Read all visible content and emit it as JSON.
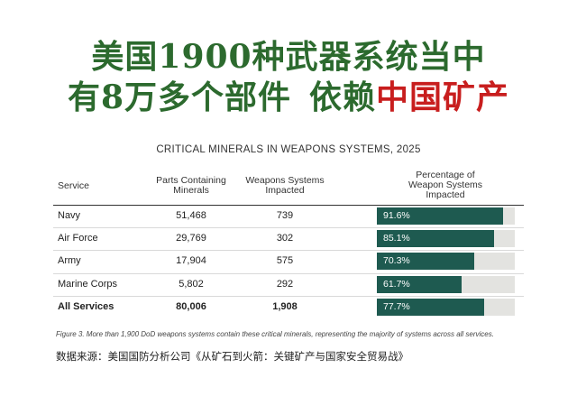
{
  "headline": {
    "line1": "美国1900种武器系统当中",
    "line2_a": "有8万多个部件",
    "line2_b": "依赖",
    "line2_c": "中国矿产"
  },
  "colors": {
    "headline_green": "#2c6a2e",
    "headline_red": "#c81e1e",
    "bar_fill": "#1e5a50",
    "bar_track": "#e3e3e0"
  },
  "chart_data": {
    "type": "table",
    "title": "CRITICAL MINERALS IN WEAPONS SYSTEMS, 2025",
    "columns": [
      "Service",
      "Parts Containing Minerals",
      "Weapons Systems Impacted",
      "Percentage of Weapon Systems Impacted"
    ],
    "rows": [
      {
        "service": "Navy",
        "parts": "51,468",
        "systems": "739",
        "pct_label": "91.6%",
        "pct": 91.6
      },
      {
        "service": "Air Force",
        "parts": "29,769",
        "systems": "302",
        "pct_label": "85.1%",
        "pct": 85.1
      },
      {
        "service": "Army",
        "parts": "17,904",
        "systems": "575",
        "pct_label": "70.3%",
        "pct": 70.3
      },
      {
        "service": "Marine Corps",
        "parts": "5,802",
        "systems": "292",
        "pct_label": "61.7%",
        "pct": 61.7
      },
      {
        "service": "All Services",
        "parts": "80,006",
        "systems": "1,908",
        "pct_label": "77.7%",
        "pct": 77.7,
        "total": true
      }
    ],
    "bar_scale_max": 100
  },
  "caption": "Figure 3. More than 1,900 DoD weapons systems contain these critical minerals, representing the majority of systems across all services.",
  "source": "数据来源：美国国防分析公司《从矿石到火箭：关键矿产与国家安全贸易战》"
}
